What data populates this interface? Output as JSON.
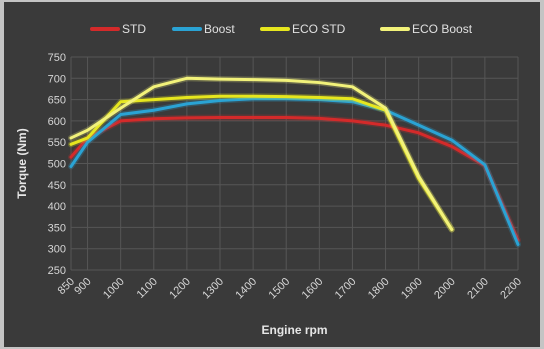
{
  "chart_data": {
    "type": "line",
    "title": "",
    "xlabel": "Engine rpm",
    "ylabel": "Torque (Nm)",
    "x": [
      850,
      900,
      1000,
      1100,
      1200,
      1300,
      1400,
      1500,
      1600,
      1700,
      1800,
      1900,
      2000,
      2100,
      2200
    ],
    "x_tick_labels": [
      "850",
      "900",
      "1000",
      "1100",
      "1200",
      "1300",
      "1400",
      "1500",
      "1600",
      "1700",
      "1800",
      "1900",
      "2000",
      "2100",
      "2200"
    ],
    "y_ticks": [
      250,
      300,
      350,
      400,
      450,
      500,
      550,
      600,
      650,
      700,
      750
    ],
    "ylim": [
      250,
      750
    ],
    "grid": true,
    "legend": "top",
    "series": [
      {
        "name": "STD",
        "color": "#d42a2a",
        "points": [
          [
            850,
            515
          ],
          [
            900,
            560
          ],
          [
            1000,
            600
          ],
          [
            1100,
            605
          ],
          [
            1200,
            607
          ],
          [
            1300,
            608
          ],
          [
            1400,
            608
          ],
          [
            1500,
            608
          ],
          [
            1600,
            606
          ],
          [
            1700,
            600
          ],
          [
            1800,
            590
          ],
          [
            1900,
            572
          ],
          [
            2000,
            540
          ],
          [
            2100,
            495
          ],
          [
            2200,
            320
          ]
        ]
      },
      {
        "name": "Boost",
        "color": "#2aa3d4",
        "points": [
          [
            850,
            493
          ],
          [
            900,
            550
          ],
          [
            1000,
            615
          ],
          [
            1100,
            625
          ],
          [
            1200,
            640
          ],
          [
            1300,
            648
          ],
          [
            1400,
            652
          ],
          [
            1500,
            652
          ],
          [
            1600,
            650
          ],
          [
            1700,
            645
          ],
          [
            1800,
            625
          ],
          [
            1900,
            590
          ],
          [
            2000,
            555
          ],
          [
            2100,
            497
          ],
          [
            2200,
            310
          ]
        ]
      },
      {
        "name": "ECO STD",
        "color": "#e6e61e",
        "points": [
          [
            850,
            545
          ],
          [
            900,
            560
          ],
          [
            1000,
            645
          ],
          [
            1100,
            650
          ],
          [
            1200,
            655
          ],
          [
            1300,
            658
          ],
          [
            1400,
            658
          ],
          [
            1500,
            657
          ],
          [
            1600,
            655
          ],
          [
            1700,
            652
          ],
          [
            1800,
            625
          ],
          [
            1900,
            465
          ],
          [
            2000,
            345
          ]
        ]
      },
      {
        "name": "ECO Boost",
        "color": "#f2f27a",
        "points": [
          [
            850,
            560
          ],
          [
            900,
            578
          ],
          [
            1000,
            630
          ],
          [
            1100,
            680
          ],
          [
            1200,
            700
          ],
          [
            1300,
            698
          ],
          [
            1400,
            697
          ],
          [
            1500,
            695
          ],
          [
            1600,
            690
          ],
          [
            1700,
            680
          ],
          [
            1800,
            630
          ],
          [
            1900,
            470
          ],
          [
            2000,
            345
          ]
        ]
      }
    ]
  }
}
